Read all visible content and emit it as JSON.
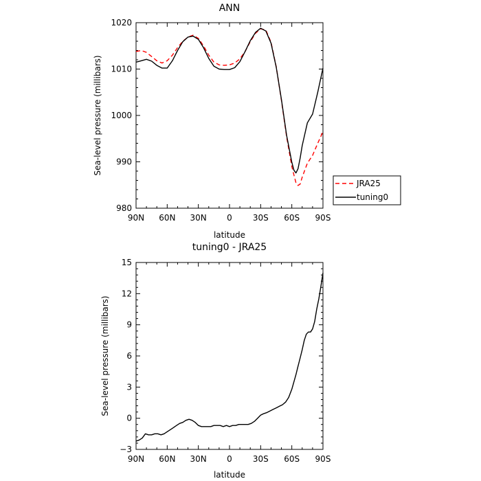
{
  "chart_data": [
    {
      "type": "line",
      "title": "ANN",
      "xlabel": "latitude",
      "ylabel": "Sea-level pressure (millibars)",
      "xlim": [
        90,
        -90
      ],
      "ylim": [
        980,
        1020
      ],
      "xticks": [
        90,
        60,
        30,
        0,
        -30,
        -60,
        -90
      ],
      "xtick_labels": [
        "90N",
        "60N",
        "30N",
        "0",
        "30S",
        "60S",
        "90S"
      ],
      "yticks": [
        980,
        990,
        1000,
        1010,
        1020
      ],
      "ytick_labels": [
        "980",
        "990",
        "1000",
        "1010",
        "1020"
      ],
      "grid": false,
      "legend": "right",
      "series": [
        {
          "name": "JRA25",
          "color": "#ff0000",
          "dash": "dashed",
          "x": [
            90,
            85,
            80,
            75,
            70,
            65,
            60,
            55,
            50,
            45,
            40,
            35,
            30,
            25,
            20,
            15,
            10,
            5,
            0,
            -5,
            -10,
            -15,
            -20,
            -25,
            -30,
            -35,
            -40,
            -45,
            -50,
            -55,
            -60,
            -62,
            -64,
            -66,
            -68,
            -70,
            -75,
            -80,
            -85,
            -90
          ],
          "y": [
            1013.8,
            1014.0,
            1013.6,
            1012.7,
            1011.8,
            1011.3,
            1011.8,
            1013.0,
            1014.6,
            1016.0,
            1016.9,
            1017.3,
            1016.6,
            1015.0,
            1013.0,
            1011.5,
            1010.9,
            1010.8,
            1010.9,
            1011.3,
            1012.2,
            1013.8,
            1015.9,
            1017.7,
            1018.7,
            1018.4,
            1015.8,
            1010.5,
            1003.2,
            995.4,
            989.0,
            987.2,
            985.5,
            984.9,
            985.2,
            986.7,
            989.7,
            991.4,
            994.0,
            996.5
          ]
        },
        {
          "name": "tuning0",
          "color": "#000000",
          "dash": "solid",
          "x": [
            90,
            85,
            80,
            75,
            70,
            65,
            60,
            55,
            50,
            45,
            40,
            35,
            30,
            25,
            20,
            15,
            10,
            5,
            0,
            -5,
            -10,
            -15,
            -20,
            -25,
            -30,
            -35,
            -40,
            -45,
            -50,
            -55,
            -60,
            -62,
            -64,
            -66,
            -68,
            -70,
            -75,
            -80,
            -85,
            -90
          ],
          "y": [
            1011.5,
            1011.8,
            1012.1,
            1011.7,
            1010.8,
            1010.2,
            1010.2,
            1011.8,
            1014.0,
            1015.9,
            1016.9,
            1017.1,
            1016.4,
            1014.6,
            1012.3,
            1010.6,
            1010.0,
            1009.9,
            1009.9,
            1010.3,
            1011.6,
            1013.8,
            1016.1,
            1017.9,
            1018.8,
            1018.2,
            1015.6,
            1010.4,
            1003.4,
            995.7,
            989.9,
            988.2,
            987.6,
            988.5,
            990.8,
            993.5,
            998.4,
            1000.3,
            1005.0,
            1010.2
          ]
        }
      ]
    },
    {
      "type": "line",
      "title": "tuning0 - JRA25",
      "xlabel": "latitude",
      "ylabel": "Sea-level pressure (millibars)",
      "xlim": [
        90,
        -90
      ],
      "ylim": [
        -3,
        15
      ],
      "xticks": [
        90,
        60,
        30,
        0,
        -30,
        -60,
        -90
      ],
      "xtick_labels": [
        "90N",
        "60N",
        "30N",
        "0",
        "30S",
        "60S",
        "90S"
      ],
      "yticks": [
        -3,
        0,
        3,
        6,
        9,
        12,
        15
      ],
      "ytick_labels": [
        "−3",
        "0",
        "3",
        "6",
        "9",
        "12",
        "15"
      ],
      "grid": false,
      "series": [
        {
          "color": "#000000",
          "dash": "solid",
          "x": [
            90,
            87,
            84,
            81,
            78,
            75,
            72,
            69,
            66,
            63,
            60,
            57,
            54,
            51,
            48,
            45,
            42,
            39,
            36,
            33,
            30,
            27,
            24,
            21,
            18,
            15,
            12,
            9,
            6,
            3,
            0,
            -3,
            -6,
            -9,
            -12,
            -15,
            -18,
            -21,
            -24,
            -27,
            -30,
            -33,
            -36,
            -39,
            -42,
            -45,
            -48,
            -51,
            -54,
            -57,
            -60,
            -62,
            -64,
            -66,
            -68,
            -70,
            -72,
            -74,
            -76,
            -78,
            -80,
            -82,
            -84,
            -86,
            -88,
            -90
          ],
          "y": [
            -2.2,
            -2.1,
            -1.9,
            -1.5,
            -1.6,
            -1.6,
            -1.5,
            -1.5,
            -1.6,
            -1.5,
            -1.3,
            -1.1,
            -0.9,
            -0.7,
            -0.5,
            -0.4,
            -0.2,
            -0.1,
            -0.2,
            -0.4,
            -0.7,
            -0.8,
            -0.8,
            -0.8,
            -0.8,
            -0.7,
            -0.7,
            -0.7,
            -0.8,
            -0.7,
            -0.8,
            -0.7,
            -0.7,
            -0.6,
            -0.6,
            -0.6,
            -0.6,
            -0.5,
            -0.3,
            0.0,
            0.3,
            0.45,
            0.55,
            0.7,
            0.85,
            1.0,
            1.15,
            1.3,
            1.55,
            2.0,
            2.8,
            3.5,
            4.2,
            5.0,
            5.8,
            6.6,
            7.5,
            8.1,
            8.3,
            8.3,
            8.6,
            9.3,
            10.5,
            11.5,
            12.7,
            14.0
          ]
        }
      ]
    }
  ]
}
